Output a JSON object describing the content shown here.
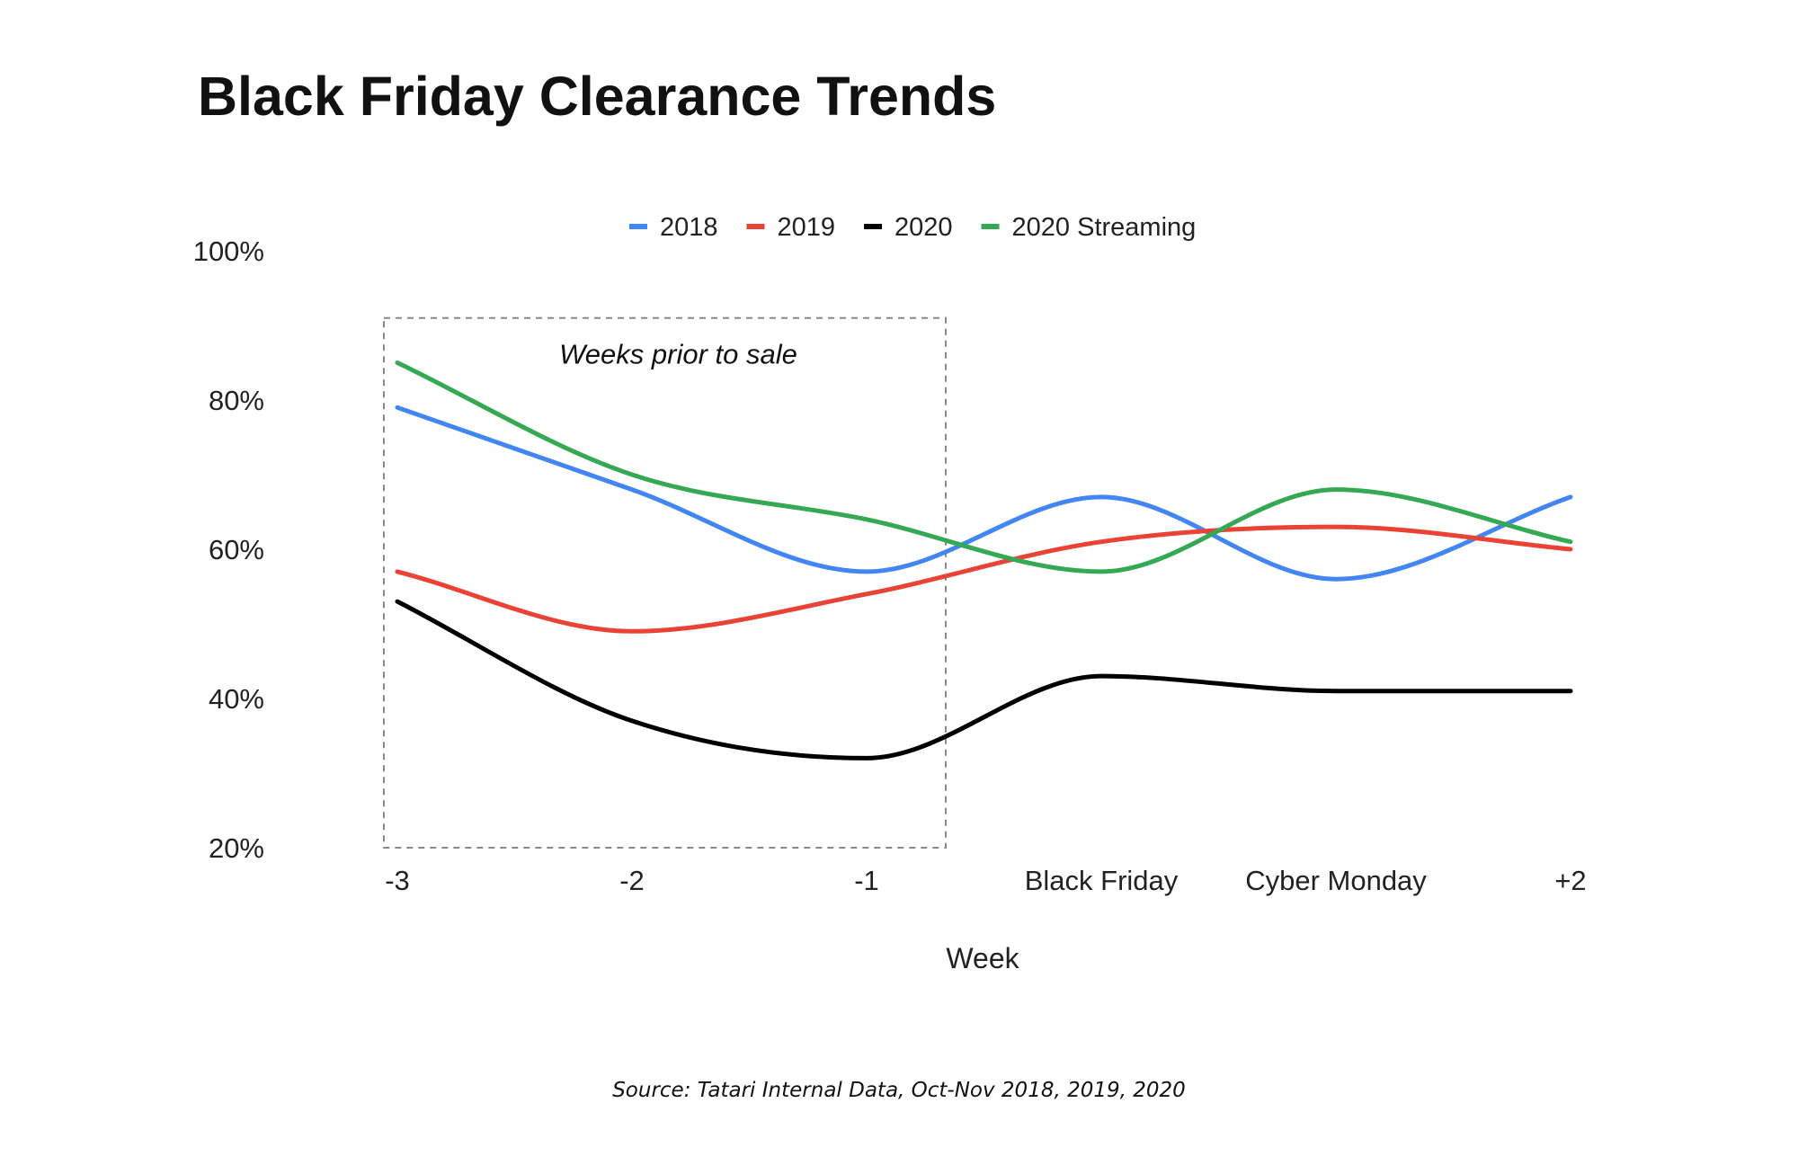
{
  "chart_data": {
    "type": "line",
    "title": "Black Friday Clearance Trends",
    "xlabel": "Week",
    "ylabel": "",
    "categories": [
      "-3",
      "-2",
      "-1",
      "Black Friday",
      "Cyber Monday",
      "+2"
    ],
    "ylim": [
      20,
      100
    ],
    "yticks": [
      "20%",
      "40%",
      "60%",
      "80%",
      "100%"
    ],
    "ytick_values": [
      20,
      40,
      60,
      80,
      100
    ],
    "grid": false,
    "legend_position": "top-center",
    "series": [
      {
        "name": "2018",
        "color": "#4285f4",
        "values": [
          79,
          68,
          57,
          67,
          56,
          67
        ]
      },
      {
        "name": "2019",
        "color": "#ea4335",
        "values": [
          57,
          49,
          54,
          61,
          63,
          60
        ]
      },
      {
        "name": "2020",
        "color": "#000000",
        "values": [
          53,
          37,
          32,
          43,
          41,
          41
        ]
      },
      {
        "name": "2020 Streaming",
        "color": "#34a853",
        "values": [
          85,
          70,
          64,
          57,
          68,
          61
        ]
      }
    ],
    "annotation": {
      "text": "Weeks prior to sale",
      "x_range": [
        "-3",
        "-1"
      ],
      "y_range": [
        20,
        91
      ]
    },
    "source": "Source: Tatari Internal Data, Oct-Nov 2018, 2019, 2020"
  }
}
